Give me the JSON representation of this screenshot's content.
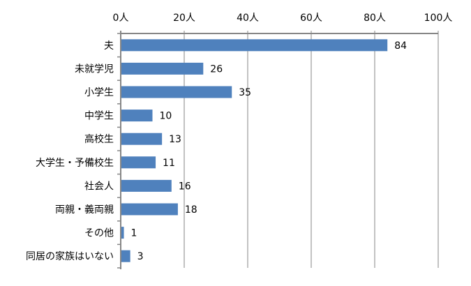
{
  "chart_data": {
    "type": "bar",
    "orientation": "horizontal",
    "categories": [
      "夫",
      "未就学児",
      "小学生",
      "中学生",
      "高校生",
      "大学生・予備校生",
      "社会人",
      "両親・義両親",
      "その他",
      "同居の家族はいない"
    ],
    "values": [
      84,
      26,
      35,
      10,
      13,
      11,
      16,
      18,
      1,
      3
    ],
    "data_labels": [
      "84",
      "26",
      "35",
      "10",
      "13",
      "11",
      "16",
      "18",
      "1",
      "3"
    ],
    "title": "",
    "xlabel": "",
    "ylabel": "",
    "xlim": [
      0,
      100
    ],
    "x_ticks": [
      0,
      20,
      40,
      60,
      80,
      100
    ],
    "x_tick_labels": [
      "0人",
      "20人",
      "40人",
      "60人",
      "80人",
      "100人"
    ],
    "x_axis_position": "top",
    "grid": true,
    "bar_color": "#4F81BD",
    "grid_color": "#868686"
  }
}
